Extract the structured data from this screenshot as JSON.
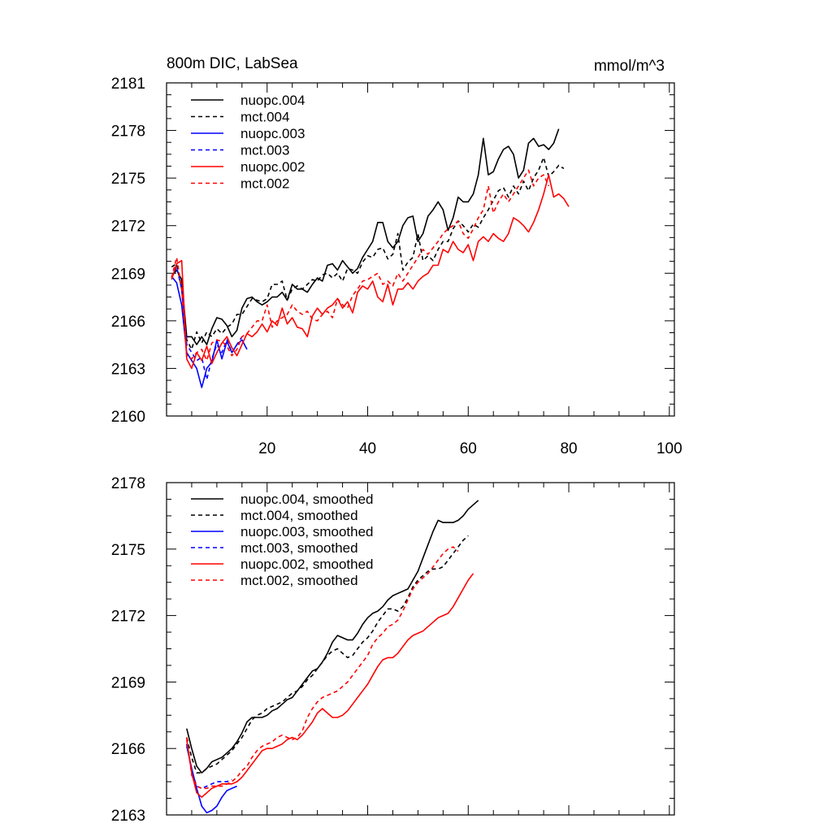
{
  "chart_data": [
    {
      "type": "line",
      "title_left": "800m DIC, LabSea",
      "title_right": "mmol/m^3",
      "xlim": [
        0,
        101
      ],
      "ylim": [
        2160,
        2181
      ],
      "xticks": [
        20,
        40,
        60,
        80,
        100
      ],
      "yticks": [
        2160,
        2163,
        2166,
        2169,
        2172,
        2175,
        2178,
        2181
      ],
      "series": [
        {
          "name": "nuopc.004",
          "color": "#000000",
          "dash": false,
          "x_start": 1,
          "values": [
            2168.8,
            2169.2,
            2168.6,
            2165.0,
            2165.0,
            2164.5,
            2165.0,
            2164.5,
            2165.5,
            2166.2,
            2166.1,
            2165.7,
            2165.0,
            2165.4,
            2166.8,
            2167.4,
            2167.5,
            2167.2,
            2167.0,
            2167.2,
            2167.5,
            2167.5,
            2167.8,
            2167.3,
            2168.3,
            2168.0,
            2168.0,
            2167.8,
            2168.3,
            2168.7,
            2168.5,
            2169.5,
            2169.6,
            2169.2,
            2169.8,
            2169.4,
            2169.0,
            2169.3,
            2170.0,
            2170.5,
            2171.0,
            2172.2,
            2172.2,
            2171.0,
            2170.6,
            2171.0,
            2172.0,
            2172.5,
            2172.6,
            2171.0,
            2171.5,
            2172.6,
            2173.0,
            2173.5,
            2173.0,
            2171.7,
            2172.5,
            2173.8,
            2173.5,
            2173.5,
            2174.0,
            2175.2,
            2177.5,
            2175.2,
            2175.4,
            2176.2,
            2176.8,
            2177.0,
            2176.5,
            2175.0,
            2175.5,
            2177.2,
            2177.5,
            2177.0,
            2177.1,
            2176.8,
            2177.2,
            2178.1
          ]
        },
        {
          "name": "mct.004",
          "color": "#000000",
          "dash": true,
          "x_start": 1,
          "values": [
            2169.4,
            2169.6,
            2168.0,
            2164.8,
            2164.2,
            2165.3,
            2164.6,
            2165.3,
            2165.0,
            2165.5,
            2165.2,
            2165.6,
            2165.8,
            2166.4,
            2166.4,
            2166.9,
            2167.4,
            2167.3,
            2167.2,
            2167.4,
            2168.3,
            2168.3,
            2168.5,
            2167.3,
            2168.0,
            2168.2,
            2168.0,
            2168.3,
            2168.6,
            2168.5,
            2168.9,
            2169.0,
            2168.7,
            2169.0,
            2168.5,
            2169.3,
            2169.2,
            2169.0,
            2169.7,
            2170.1,
            2170.0,
            2170.5,
            2170.6,
            2169.9,
            2170.2,
            2171.5,
            2169.2,
            2169.7,
            2170.0,
            2171.5,
            2169.8,
            2170.1,
            2169.8,
            2170.5,
            2171.0,
            2171.0,
            2171.8,
            2172.3,
            2172.0,
            2171.6,
            2172.1,
            2171.9,
            2172.5,
            2173.0,
            2173.6,
            2174.2,
            2174.4,
            2173.8,
            2174.5,
            2174.0,
            2174.8,
            2174.2,
            2175.0,
            2175.5,
            2176.3,
            2175.1,
            2175.4,
            2175.8,
            2175.6
          ]
        },
        {
          "name": "nuopc.003",
          "color": "#0000ff",
          "dash": false,
          "x_start": 1,
          "values": [
            2168.8,
            2168.4,
            2167.0,
            2164.0,
            2163.5,
            2163.0,
            2161.8,
            2163.0,
            2163.4,
            2164.8,
            2163.6,
            2164.7,
            2164.0,
            2164.5,
            2164.8,
            2164.2
          ]
        },
        {
          "name": "mct.003",
          "color": "#0000ff",
          "dash": true,
          "x_start": 1,
          "values": [
            2168.7,
            2169.4,
            2168.0,
            2164.5,
            2164.0,
            2163.5,
            2163.7,
            2162.3,
            2163.6,
            2164.5,
            2164.0,
            2164.8,
            2164.0,
            2164.5,
            2165.0
          ]
        },
        {
          "name": "nuopc.002",
          "color": "#ff0000",
          "dash": false,
          "x_start": 1,
          "values": [
            2168.6,
            2169.6,
            2169.8,
            2163.6,
            2163.0,
            2164.0,
            2163.5,
            2164.4,
            2163.3,
            2164.0,
            2164.6,
            2165.0,
            2164.3,
            2163.8,
            2164.5,
            2165.2,
            2165.0,
            2165.3,
            2165.8,
            2165.3,
            2166.0,
            2165.7,
            2166.8,
            2165.8,
            2166.2,
            2165.6,
            2165.5,
            2165.0,
            2166.3,
            2166.8,
            2166.4,
            2166.8,
            2167.0,
            2167.4,
            2166.8,
            2167.2,
            2166.5,
            2167.8,
            2168.2,
            2168.0,
            2168.5,
            2167.5,
            2167.2,
            2168.3,
            2167.0,
            2168.0,
            2168.0,
            2168.4,
            2168.0,
            2168.5,
            2168.8,
            2169.0,
            2169.5,
            2169.5,
            2170.5,
            2170.3,
            2171.0,
            2170.5,
            2170.3,
            2170.8,
            2169.8,
            2171.0,
            2171.3,
            2171.0,
            2171.5,
            2171.2,
            2171.0,
            2171.5,
            2172.5,
            2172.3,
            2172.0,
            2171.6,
            2172.2,
            2173.0,
            2174.0,
            2175.2,
            2173.8,
            2174.0,
            2173.7,
            2173.2
          ]
        },
        {
          "name": "mct.002",
          "color": "#ff0000",
          "dash": true,
          "x_start": 1,
          "values": [
            2168.7,
            2170.0,
            2168.0,
            2163.8,
            2163.6,
            2164.0,
            2164.2,
            2163.5,
            2164.6,
            2164.8,
            2164.7,
            2164.4,
            2163.8,
            2164.2,
            2165.0,
            2165.2,
            2165.6,
            2166.0,
            2166.0,
            2167.0,
            2165.6,
            2166.0,
            2166.2,
            2166.4,
            2167.0,
            2166.6,
            2166.4,
            2166.6,
            2166.1,
            2166.0,
            2166.4,
            2166.6,
            2166.2,
            2167.4,
            2167.0,
            2166.8,
            2167.6,
            2168.0,
            2168.5,
            2168.6,
            2168.8,
            2169.0,
            2168.3,
            2168.5,
            2168.2,
            2169.0,
            2168.5,
            2169.0,
            2169.5,
            2170.0,
            2170.5,
            2170.2,
            2170.6,
            2171.0,
            2171.5,
            2171.8,
            2172.0,
            2172.3,
            2171.5,
            2171.2,
            2171.8,
            2172.5,
            2173.0,
            2174.5,
            2172.8,
            2173.5,
            2174.0,
            2173.5,
            2174.0,
            2174.5,
            2175.0,
            2175.5,
            2174.5,
            2175.0,
            2175.2,
            2174.5
          ]
        }
      ]
    },
    {
      "type": "line",
      "title_left": "",
      "title_right": "",
      "xlim": [
        0,
        101
      ],
      "ylim": [
        2163,
        2178
      ],
      "xticks": [
        20,
        40,
        60,
        80,
        100
      ],
      "yticks": [
        2163,
        2166,
        2169,
        2172,
        2175,
        2178
      ],
      "series": [
        {
          "name": "nuopc.004, smoothed",
          "color": "#000000",
          "dash": false,
          "x_start": 4,
          "values": [
            2166.9,
            2166.0,
            2165.2,
            2164.9,
            2165.1,
            2165.4,
            2165.5,
            2165.6,
            2165.8,
            2166.0,
            2166.3,
            2166.7,
            2167.2,
            2167.4,
            2167.4,
            2167.4,
            2167.5,
            2167.7,
            2167.8,
            2168.0,
            2168.2,
            2168.3,
            2168.6,
            2168.9,
            2169.2,
            2169.5,
            2169.6,
            2169.9,
            2170.3,
            2170.8,
            2171.1,
            2171.0,
            2170.9,
            2170.9,
            2171.2,
            2171.6,
            2171.9,
            2172.1,
            2172.2,
            2172.4,
            2172.7,
            2172.9,
            2173.0,
            2173.1,
            2173.2,
            2173.6,
            2174.0,
            2174.6,
            2175.2,
            2175.8,
            2176.3,
            2176.2,
            2176.2,
            2176.2,
            2176.3,
            2176.5,
            2176.8,
            2177.0,
            2177.2
          ]
        },
        {
          "name": "mct.004, smoothed",
          "color": "#000000",
          "dash": true,
          "x_start": 4,
          "values": [
            2166.5,
            2165.6,
            2164.9,
            2164.9,
            2165.1,
            2165.2,
            2165.3,
            2165.5,
            2165.7,
            2165.9,
            2166.2,
            2166.5,
            2166.9,
            2167.3,
            2167.5,
            2167.6,
            2167.8,
            2167.9,
            2168.0,
            2168.1,
            2168.3,
            2168.5,
            2168.6,
            2168.8,
            2169.1,
            2169.3,
            2169.6,
            2169.9,
            2170.2,
            2170.4,
            2170.5,
            2170.3,
            2170.1,
            2170.2,
            2170.5,
            2170.8,
            2171.0,
            2171.3,
            2171.7,
            2172.0,
            2172.3,
            2172.3,
            2172.2,
            2172.4,
            2172.8,
            2173.3,
            2173.6,
            2173.8,
            2174.0,
            2174.1,
            2174.1,
            2174.2,
            2174.5,
            2174.8,
            2175.1,
            2175.4,
            2175.6
          ]
        },
        {
          "name": "nuopc.003, smoothed",
          "color": "#0000ff",
          "dash": false,
          "x_start": 4,
          "values": [
            2166.1,
            2165.1,
            2164.2,
            2163.4,
            2163.1,
            2163.2,
            2163.4,
            2163.8,
            2164.1,
            2164.2,
            2164.3
          ]
        },
        {
          "name": "mct.003, smoothed",
          "color": "#0000ff",
          "dash": true,
          "x_start": 4,
          "values": [
            2166.2,
            2165.0,
            2164.3,
            2164.2,
            2164.3,
            2164.4,
            2164.5,
            2164.5,
            2164.5,
            2164.6
          ]
        },
        {
          "name": "nuopc.002, smoothed",
          "color": "#ff0000",
          "dash": false,
          "x_start": 4,
          "values": [
            2166.4,
            2164.9,
            2164.0,
            2163.8,
            2164.0,
            2164.2,
            2164.3,
            2164.4,
            2164.4,
            2164.4,
            2164.5,
            2164.7,
            2165.0,
            2165.3,
            2165.6,
            2165.9,
            2166.0,
            2166.0,
            2166.1,
            2166.2,
            2166.4,
            2166.5,
            2166.4,
            2166.6,
            2166.9,
            2167.2,
            2167.6,
            2167.8,
            2167.6,
            2167.4,
            2167.4,
            2167.5,
            2167.7,
            2168.0,
            2168.3,
            2168.6,
            2168.9,
            2169.3,
            2169.7,
            2170.0,
            2170.1,
            2170.1,
            2170.3,
            2170.6,
            2170.9,
            2171.1,
            2171.2,
            2171.3,
            2171.5,
            2171.7,
            2171.9,
            2172.0,
            2172.1,
            2172.4,
            2172.8,
            2173.2,
            2173.6,
            2173.9
          ]
        },
        {
          "name": "mct.002, smoothed",
          "color": "#ff0000",
          "dash": true,
          "x_start": 4,
          "values": [
            2166.5,
            2164.8,
            2164.3,
            2164.2,
            2164.2,
            2164.3,
            2164.3,
            2164.3,
            2164.4,
            2164.5,
            2164.7,
            2165.0,
            2165.2,
            2165.6,
            2165.9,
            2166.1,
            2166.2,
            2166.3,
            2166.5,
            2166.6,
            2166.5,
            2166.4,
            2166.5,
            2166.8,
            2167.4,
            2167.8,
            2168.1,
            2168.3,
            2168.4,
            2168.5,
            2168.6,
            2168.8,
            2169.0,
            2169.3,
            2169.6,
            2169.9,
            2170.2,
            2170.7,
            2171.0,
            2171.2,
            2171.5,
            2171.6,
            2171.8,
            2172.2,
            2172.7,
            2173.2,
            2173.5,
            2173.7,
            2173.9,
            2174.2,
            2174.5,
            2174.8,
            2175.0,
            2175.1,
            2174.9
          ]
        }
      ]
    }
  ]
}
